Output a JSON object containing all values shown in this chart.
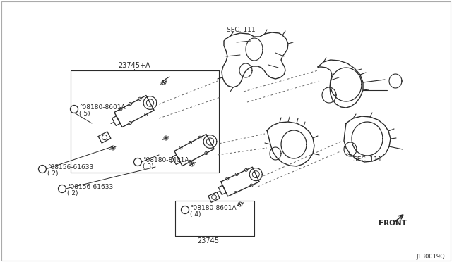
{
  "background_color": "#ffffff",
  "diagram_id": "J130019Q",
  "labels": {
    "sec111_top": "SEC. 111",
    "sec111_right": "SEC. 111",
    "front": "FRONT",
    "ref_23745_plus_a": "23745+A",
    "ref_23745": "23745",
    "part1_id": "°08180-8601A",
    "part1_qty": "( 5)",
    "part2_id": "°08180-8401A",
    "part2_qty": "( 3)",
    "part3_id": "°08156-61633",
    "part3_qty": "( 2)",
    "part4_id": "°08156-61633",
    "part4_qty": "( 2)",
    "part5_id": "°08180-8601A",
    "part5_qty": "( 4)"
  },
  "colors": {
    "line": "#2a2a2a",
    "text": "#2a2a2a",
    "dashed": "#666666"
  }
}
